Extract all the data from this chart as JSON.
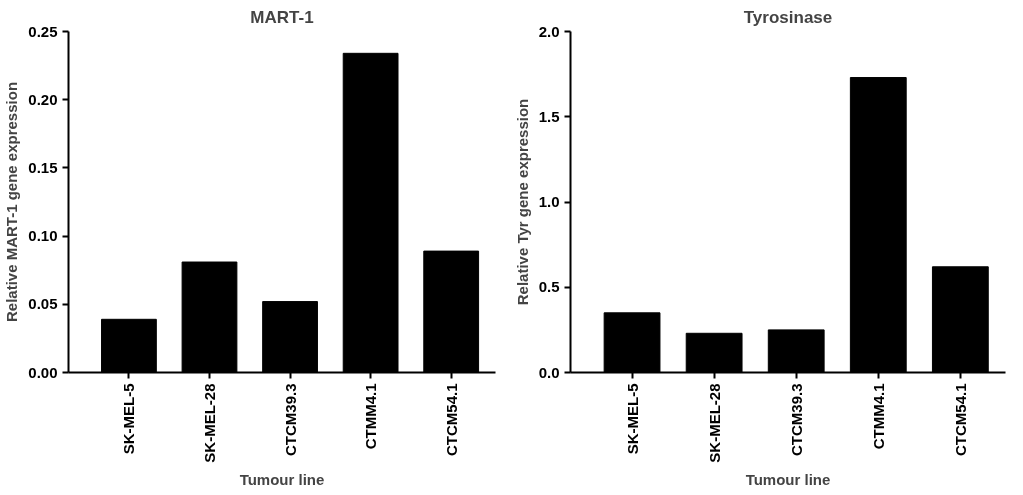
{
  "chart_data": [
    {
      "type": "bar",
      "title": "MART-1",
      "xlabel": "Tumour line",
      "ylabel": "Relative MART-1 gene expression",
      "categories": [
        "SK-MEL-5",
        "SK-MEL-28",
        "CTCM39.3",
        "CTMM4.1",
        "CTCM54.1"
      ],
      "values": [
        0.039,
        0.081,
        0.052,
        0.234,
        0.089
      ],
      "color": "#000000",
      "ylim": [
        0,
        0.25
      ],
      "yticks": [
        {
          "value": 0,
          "label": "0.00"
        },
        {
          "value": 0.05,
          "label": "0.05"
        },
        {
          "value": 0.1,
          "label": "0.10"
        },
        {
          "value": 0.15,
          "label": "0.15"
        },
        {
          "value": 0.2,
          "label": "0.20"
        },
        {
          "value": 0.25,
          "label": "0.25"
        }
      ],
      "grid": false
    },
    {
      "type": "bar",
      "title": "Tyrosinase",
      "xlabel": "Tumour line",
      "ylabel": "Relative Tyr gene expression",
      "categories": [
        "SK-MEL-5",
        "SK-MEL-28",
        "CTCM39.3",
        "CTMM4.1",
        "CTCM54.1"
      ],
      "values": [
        0.35,
        0.23,
        0.25,
        1.73,
        0.62
      ],
      "color": "#000000",
      "ylim": [
        0,
        2.0
      ],
      "yticks": [
        {
          "value": 0,
          "label": "0.0"
        },
        {
          "value": 0.5,
          "label": "0.5"
        },
        {
          "value": 1.0,
          "label": "1.0"
        },
        {
          "value": 1.5,
          "label": "1.5"
        },
        {
          "value": 2.0,
          "label": "2.0"
        }
      ],
      "grid": false
    }
  ]
}
